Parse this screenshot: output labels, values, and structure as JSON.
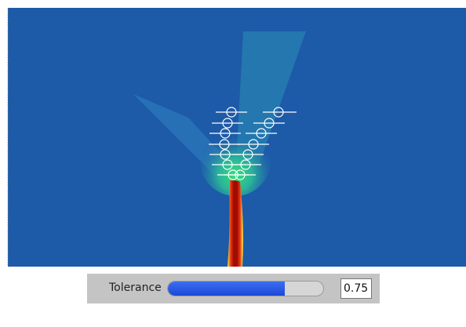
{
  "tolerance": {
    "label": "Tolerance",
    "value": 0.75
  }
}
